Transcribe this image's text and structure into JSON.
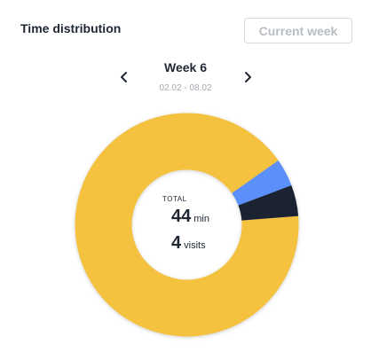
{
  "panel": {
    "title": "Time distribution",
    "current_week_label": "Current week"
  },
  "week": {
    "label": "Week 6",
    "range": "02.02 - 08.02",
    "prev_icon": "chevron-left-icon",
    "next_icon": "chevron-right-icon"
  },
  "summary": {
    "total_label": "TOTAL",
    "minutes_value": "44",
    "minutes_unit": "min",
    "visits_value": "4",
    "visits_unit": "visits"
  },
  "chart_data": {
    "type": "pie",
    "values": [
      91.5,
      4.0,
      4.5
    ],
    "colors": [
      "#f4c23f",
      "#5b8ff9",
      "#1b2333"
    ],
    "start_angle_deg": 85.5,
    "legend": "none"
  }
}
